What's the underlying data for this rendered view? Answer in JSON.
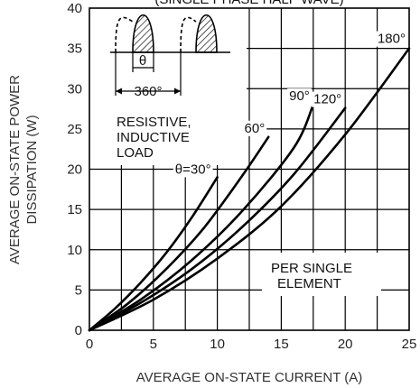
{
  "chart_data": {
    "type": "line",
    "title": "(SINGLE PHASE HALF WAVE)",
    "xlabel": "AVERAGE ON-STATE CURRENT (A)",
    "ylabel": [
      "AVERAGE ON-STATE POWER",
      "DISSIPATION (W)"
    ],
    "xlim": [
      0,
      25
    ],
    "ylim": [
      0,
      40
    ],
    "x_ticks": [
      "0",
      "5",
      "10",
      "15",
      "20",
      "25"
    ],
    "y_ticks": [
      "0",
      "5",
      "10",
      "15",
      "20",
      "25",
      "30",
      "35",
      "40"
    ],
    "grid": true,
    "series": [
      {
        "name": "θ=30°",
        "x": [
          0,
          2,
          4,
          6,
          8,
          10
        ],
        "y": [
          0,
          2.7,
          5.9,
          9.6,
          14.0,
          19.0
        ]
      },
      {
        "name": "60°",
        "x": [
          0,
          3,
          6,
          9,
          12,
          14
        ],
        "y": [
          0,
          3.3,
          7.6,
          12.8,
          19.3,
          24.0
        ]
      },
      {
        "name": "90°",
        "x": [
          0,
          4,
          8,
          12,
          16,
          17.5
        ],
        "y": [
          0,
          3.8,
          8.7,
          14.9,
          22.7,
          28.0
        ]
      },
      {
        "name": "120°",
        "x": [
          0,
          4,
          8,
          12,
          16,
          20
        ],
        "y": [
          0,
          3.4,
          7.6,
          12.9,
          19.4,
          27.6
        ]
      },
      {
        "name": "180°",
        "x": [
          0,
          5,
          10,
          15,
          20,
          25
        ],
        "y": [
          0,
          3.8,
          8.9,
          15.4,
          24.3,
          35.0
        ]
      }
    ],
    "annotations": {
      "inset_theta": "θ",
      "inset_period": "360°",
      "load_lines": [
        "RESISTIVE,",
        "INDUCTIVE",
        "LOAD"
      ],
      "element_lines": [
        "PER SINGLE",
        "ELEMENT"
      ]
    }
  }
}
